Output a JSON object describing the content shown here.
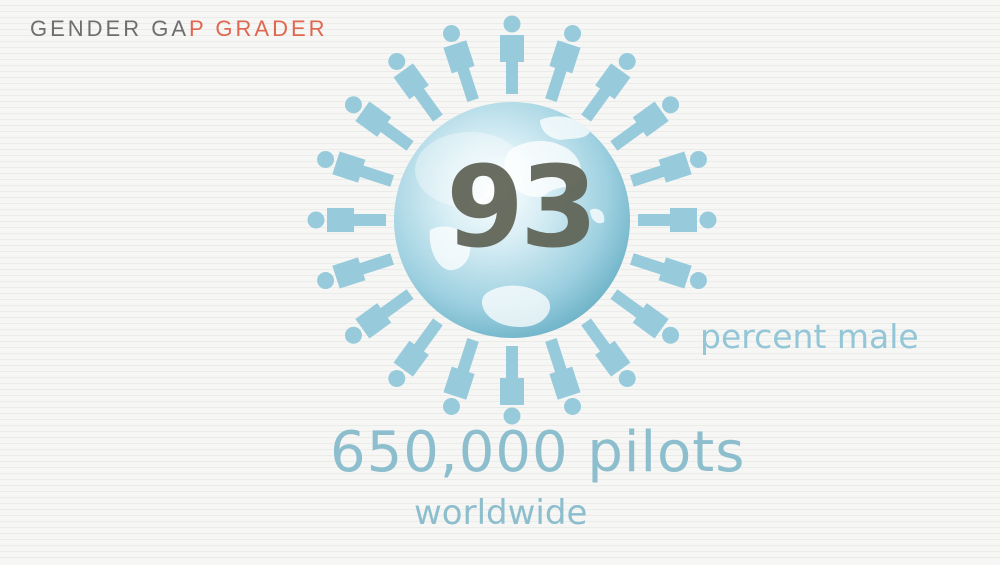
{
  "header": {
    "brand_part_a": "GENDER GA",
    "brand_part_b": "P GRADER"
  },
  "infographic": {
    "figure_value": "93",
    "figure_label": "percent male",
    "stat_value": "650,000 pilots",
    "stat_caption": "worldwide"
  },
  "colors": {
    "accent_red": "#e0664f",
    "accent_blue": "#8dbecd",
    "person_blue": "#97cbdc",
    "globe_blue": "#7fc1d6",
    "number_gray": "#5e6254"
  },
  "icons": {
    "center": "globe-icon",
    "ring": "person-icon"
  }
}
